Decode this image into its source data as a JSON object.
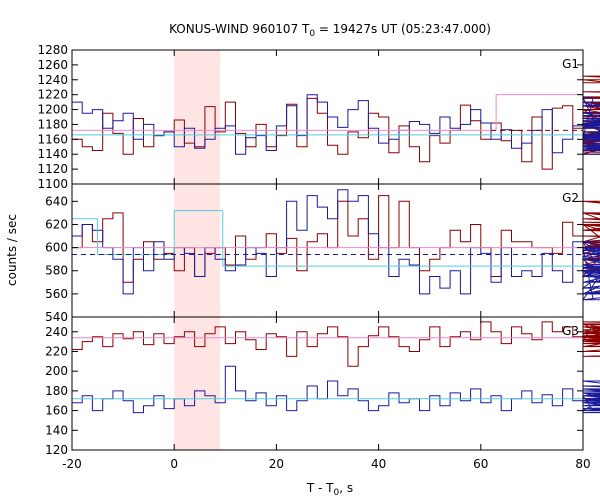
{
  "chart_data": {
    "type": "line",
    "title": "KONUS-WIND 960107 T",
    "title_sub": "0",
    "title_rest": " = 19427s UT (05:23:47.000)",
    "xlabel": "T - T",
    "xlabel_sub": "0",
    "xlabel_rest": ", s",
    "ylabel": "counts / sec",
    "xlim": [
      -20,
      80
    ],
    "x_ticks": [
      -20,
      0,
      20,
      40,
      60,
      80
    ],
    "x_tick_labels": [
      "-20",
      "0",
      "20",
      "40",
      "60",
      "80"
    ],
    "bin_width_s": 2.0,
    "highlight_interval": [
      0,
      9
    ],
    "colors": {
      "highlight": "#ffe4e4",
      "red_series": "#8b0000",
      "blue_series": "#1a1a99",
      "pink_fit": "#ee88cc",
      "cyan_fit": "#55ccdd"
    },
    "panels": [
      {
        "label": "G1",
        "ylim": [
          1100,
          1280
        ],
        "y_ticks": [
          1100,
          1120,
          1140,
          1160,
          1180,
          1200,
          1220,
          1240,
          1260,
          1280
        ],
        "y_tick_labels": [
          "1100",
          "1120",
          "1140",
          "1160",
          "1180",
          "1200",
          "1220",
          "1240",
          "1260",
          "1280"
        ],
        "series": [
          {
            "color_key": "red_series",
            "values": [
              1160,
              1150,
              1145,
              1195,
              1168,
              1140,
              1188,
              1150,
              1165,
              1170,
              1186,
              1155,
              1150,
              1204,
              1170,
              1210,
              1168,
              1150,
              1180,
              1150,
              1165,
              1207,
              1150,
              1215,
              1195,
              1152,
              1140,
              1170,
              1162,
              1195,
              1190,
              1142,
              1178,
              1150,
              1130,
              1165,
              1155,
              1172,
              1206,
              1185,
              1160,
              1182,
              1158,
              1172,
              1130,
              1190,
              1120,
              1202,
              1205,
              1175,
              1165,
              1156,
              1160,
              1180,
              1200,
              1154,
              1158,
              1155,
              1167,
              1175,
              1205,
              1178,
              1143,
              1140,
              1210,
              1185,
              1150,
              1155,
              1190,
              1217,
              1200,
              1152,
              1182,
              1140,
              1140,
              1236,
              1240,
              1200,
              1210,
              1150,
              1195,
              1176,
              1178,
              1205,
              1184,
              1190,
              1210,
              1185,
              1170,
              1180,
              1165,
              1224,
              1210,
              1200,
              1210,
              1160,
              1180,
              1245,
              1210,
              1165,
              1215,
              1210
            ]
          },
          {
            "color_key": "blue_series",
            "values": [
              1210,
              1195,
              1200,
              1175,
              1185,
              1195,
              1160,
              1180,
              1165,
              1170,
              1150,
              1175,
              1148,
              1160,
              1175,
              1178,
              1140,
              1162,
              1165,
              1145,
              1178,
              1205,
              1165,
              1220,
              1210,
              1190,
              1176,
              1200,
              1212,
              1175,
              1155,
              1160,
              1172,
              1184,
              1180,
              1168,
              1190,
              1175,
              1180,
              1200,
              1182,
              1160,
              1173,
              1148,
              1155,
              1172,
              1200,
              1142,
              1160,
              1178,
              1162,
              1216,
              1158,
              1175,
              1205,
              1210,
              1180,
              1145,
              1178,
              1164,
              1180,
              1196,
              1150,
              1165,
              1170,
              1152,
              1162,
              1178,
              1175,
              1185,
              1160,
              1146,
              1165,
              1188,
              1155,
              1150,
              1140,
              1148,
              1165,
              1192,
              1170,
              1160,
              1180,
              1148,
              1165,
              1182,
              1150,
              1155,
              1148,
              1163,
              1145,
              1164,
              1148,
              1150,
              1165,
              1160,
              1170,
              1158,
              1166,
              1152,
              1165,
              1170
            ]
          }
        ],
        "fits": [
          {
            "color_key": "pink_fit",
            "dashed": false,
            "segments": [
              [
                -20,
                63,
                1172
              ],
              [
                63,
                80,
                1220
              ]
            ]
          },
          {
            "color_key": "red_series",
            "dashed": true,
            "segments": [
              [
                62,
                80,
                1172
              ]
            ]
          },
          {
            "color_key": "cyan_fit",
            "dashed": false,
            "segments": [
              [
                -20,
                80,
                1166
              ]
            ]
          }
        ]
      },
      {
        "label": "G2",
        "ylim": [
          540,
          655
        ],
        "y_ticks": [
          540,
          560,
          580,
          600,
          620,
          640
        ],
        "y_tick_labels": [
          "540",
          "560",
          "580",
          "600",
          "620",
          "640"
        ],
        "series": [
          {
            "color_key": "red_series",
            "values": [
              600,
              620,
              605,
              625,
              630,
              570,
              590,
              605,
              590,
              595,
              580,
              600,
              575,
              595,
              600,
              585,
              610,
              590,
              600,
              612,
              595,
              608,
              580,
              605,
              612,
              600,
              640,
              610,
              625,
              590,
              645,
              600,
              640,
              600,
              580,
              590,
              600,
              615,
              605,
              620,
              600,
              575,
              615,
              605,
              605,
              600,
              600,
              595,
              622,
              610,
              605,
              590,
              575,
              605,
              615,
              620,
              580,
              590,
              605,
              600,
              630,
              595,
              595,
              622,
              620,
              605,
              580,
              600,
              630,
              620,
              615,
              620,
              560,
              585,
              640,
              625,
              620,
              600,
              585,
              590,
              610,
              605,
              630,
              600,
              620,
              625,
              605,
              580,
              575,
              590,
              610,
              600,
              640,
              605,
              640,
              600,
              575,
              580,
              615,
              600
            ]
          },
          {
            "color_key": "blue_series",
            "values": [
              610,
              620,
              615,
              600,
              590,
              560,
              600,
              580,
              605,
              590,
              600,
              595,
              575,
              600,
              590,
              580,
              585,
              600,
              595,
              575,
              600,
              640,
              615,
              645,
              635,
              625,
              650,
              640,
              645,
              612,
              600,
              575,
              590,
              585,
              560,
              575,
              565,
              580,
              560,
              600,
              595,
              570,
              600,
              575,
              580,
              575,
              595,
              580,
              570,
              605,
              600,
              555,
              580,
              565,
              592,
              605,
              570,
              585,
              575,
              600,
              560,
              605,
              580,
              590,
              565,
              580,
              560,
              575,
              600,
              570,
              580,
              560,
              598,
              575,
              580,
              555,
              582,
              600,
              590,
              560,
              575,
              585,
              600,
              578,
              595,
              560,
              583,
              600,
              575,
              590,
              595,
              585,
              600,
              575,
              560,
              580,
              600,
              590,
              570,
              605
            ]
          }
        ],
        "fits": [
          {
            "color_key": "cyan_fit",
            "dashed": false,
            "segments": [
              [
                -20,
                -15,
                625
              ],
              [
                -15,
                0,
                594
              ],
              [
                0,
                9.5,
                632
              ],
              [
                9.5,
                80,
                584
              ]
            ]
          },
          {
            "color_key": "pink_fit",
            "dashed": false,
            "segments": [
              [
                -20,
                80,
                600
              ]
            ]
          },
          {
            "color_key": "blue_series",
            "dashed": true,
            "segments": [
              [
                -20,
                80,
                594
              ]
            ]
          }
        ]
      },
      {
        "label": "G3",
        "ylim": [
          120,
          255
        ],
        "y_ticks": [
          120,
          140,
          160,
          180,
          200,
          220,
          240
        ],
        "y_tick_labels": [
          "120",
          "140",
          "160",
          "180",
          "200",
          "220",
          "240"
        ],
        "series": [
          {
            "color_key": "red_series",
            "values": [
              222,
              230,
              235,
              225,
              238,
              233,
              240,
              227,
              238,
              228,
              235,
              240,
              225,
              238,
              245,
              228,
              240,
              232,
              222,
              238,
              235,
              215,
              240,
              225,
              238,
              245,
              235,
              205,
              225,
              236,
              245,
              235,
              225,
              220,
              232,
              245,
              225,
              235,
              240,
              232,
              250,
              240,
              228,
              245,
              238,
              232,
              250,
              240,
              245,
              235,
              230,
              248,
              238,
              245,
              240,
              230,
              242,
              225,
              238,
              248,
              230,
              240,
              235,
              232,
              245,
              240,
              228,
              238,
              245,
              225,
              232,
              248,
              240,
              228,
              238,
              245,
              230,
              240,
              232,
              220,
              248,
              230,
              236,
              242,
              228,
              240,
              234,
              250,
              242,
              230,
              245,
              240,
              215,
              230,
              245,
              232,
              240,
              236,
              228,
              242
            ]
          },
          {
            "color_key": "blue_series",
            "values": [
              168,
              175,
              160,
              172,
              180,
              170,
              158,
              165,
              175,
              162,
              172,
              165,
              180,
              175,
              168,
              205,
              180,
              170,
              178,
              165,
              175,
              160,
              170,
              185,
              172,
              190,
              175,
              182,
              170,
              160,
              165,
              178,
              168,
              172,
              160,
              175,
              165,
              178,
              170,
              182,
              168,
              175,
              160,
              172,
              180,
              168,
              176,
              165,
              182,
              170,
              175,
              160,
              172,
              168,
              178,
              165,
              170,
              182,
              175,
              168,
              160,
              172,
              178,
              165,
              175,
              190,
              170,
              178,
              165,
              172,
              160,
              175,
              168,
              180,
              170,
              165,
              172,
              178,
              160,
              170,
              182,
              168,
              175,
              185,
              170,
              162,
              175,
              168,
              178,
              165,
              172,
              160,
              168,
              175,
              180,
              170,
              158,
              168,
              178,
              165
            ]
          }
        ],
        "fits": [
          {
            "color_key": "pink_fit",
            "dashed": false,
            "segments": [
              [
                -20,
                80,
                234
              ]
            ]
          },
          {
            "color_key": "cyan_fit",
            "dashed": false,
            "segments": [
              [
                -20,
                80,
                172
              ]
            ]
          }
        ]
      }
    ]
  }
}
